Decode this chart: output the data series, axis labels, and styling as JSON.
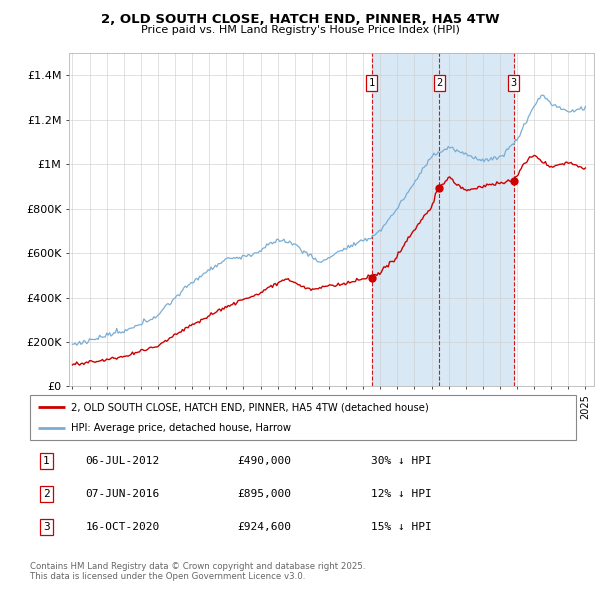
{
  "title": "2, OLD SOUTH CLOSE, HATCH END, PINNER, HA5 4TW",
  "subtitle": "Price paid vs. HM Land Registry's House Price Index (HPI)",
  "legend_line1": "2, OLD SOUTH CLOSE, HATCH END, PINNER, HA5 4TW (detached house)",
  "legend_line2": "HPI: Average price, detached house, Harrow",
  "red_line_color": "#cc0000",
  "blue_line_color": "#7aadd4",
  "vline_color": "#cc0000",
  "shade_color": "#d8e8f5",
  "transactions": [
    {
      "label": "1",
      "date": "06-JUL-2012",
      "price": "£490,000",
      "hpi": "30% ↓ HPI",
      "year": 2012.5
    },
    {
      "label": "2",
      "date": "07-JUN-2016",
      "price": "£895,000",
      "hpi": "12% ↓ HPI",
      "year": 2016.45
    },
    {
      "label": "3",
      "date": "16-OCT-2020",
      "price": "£924,600",
      "hpi": "15% ↓ HPI",
      "year": 2020.8
    }
  ],
  "footnote": "Contains HM Land Registry data © Crown copyright and database right 2025.\nThis data is licensed under the Open Government Licence v3.0.",
  "ylim": [
    0,
    1500000
  ],
  "xlim": [
    1994.8,
    2025.5
  ],
  "yticks": [
    0,
    200000,
    400000,
    600000,
    800000,
    1000000,
    1200000,
    1400000
  ],
  "ytick_labels": [
    "£0",
    "£200K",
    "£400K",
    "£600K",
    "£800K",
    "£1M",
    "£1.2M",
    "£1.4M"
  ]
}
